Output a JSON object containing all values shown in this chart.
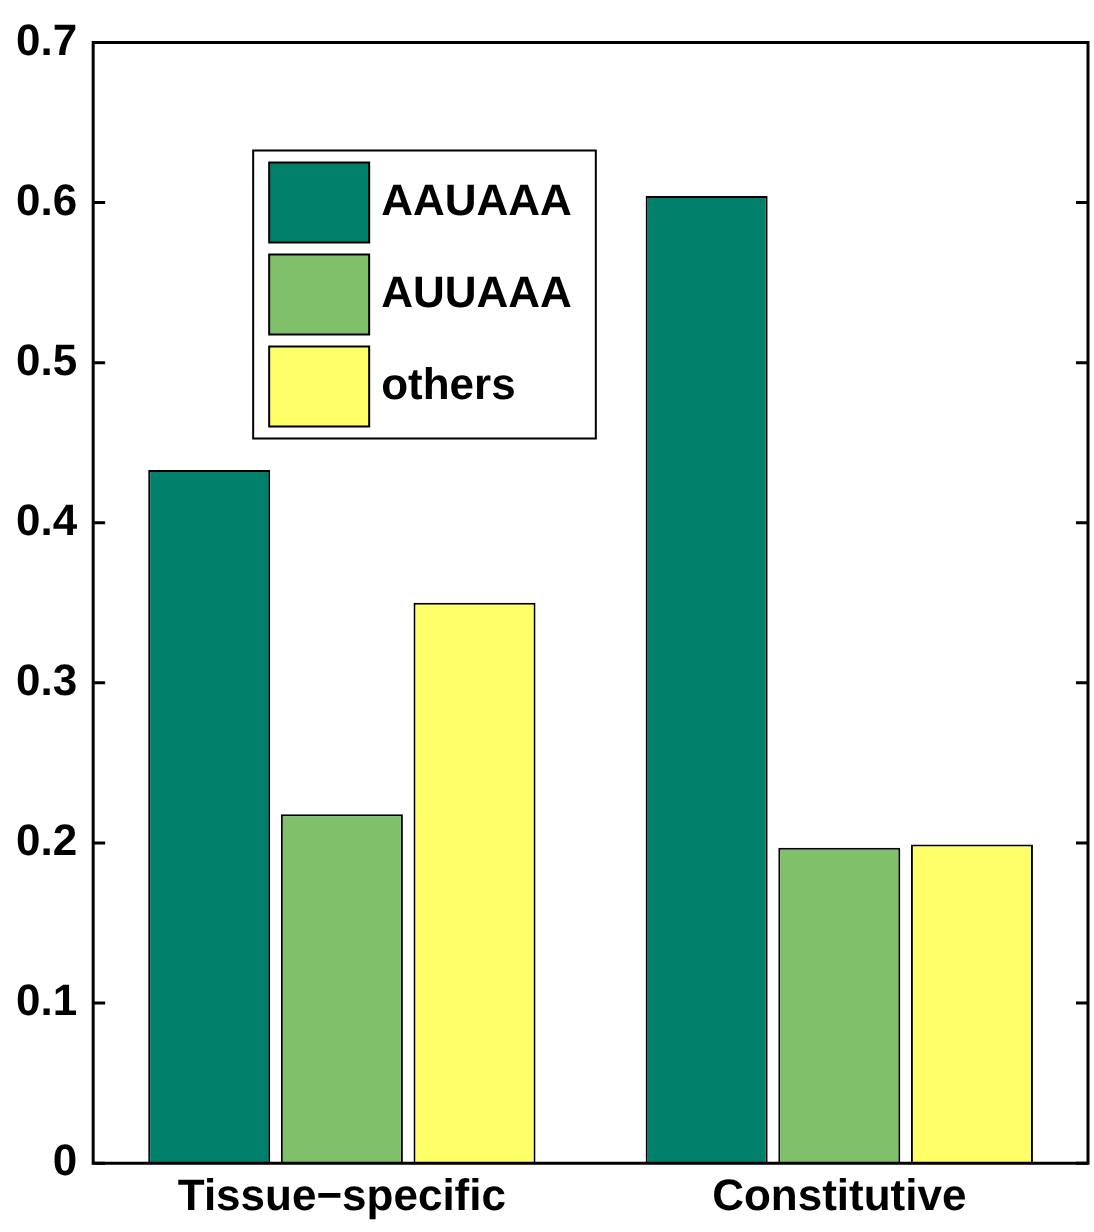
{
  "chart_data": {
    "type": "bar",
    "categories": [
      "Tissue−specific",
      "Constitutive"
    ],
    "series": [
      {
        "name": "AAUAAA",
        "color": "#00806a",
        "values": [
          0.433,
          0.604
        ]
      },
      {
        "name": "AUUAAA",
        "color": "#80c06a",
        "values": [
          0.218,
          0.197
        ]
      },
      {
        "name": "others",
        "color": "#ffff6a",
        "values": [
          0.35,
          0.199
        ]
      }
    ],
    "ylim": [
      0,
      0.7
    ],
    "yticks": [
      0,
      0.1,
      0.2,
      0.3,
      0.4,
      0.5,
      0.6,
      0.7
    ],
    "grid": false,
    "legend": "top left"
  }
}
